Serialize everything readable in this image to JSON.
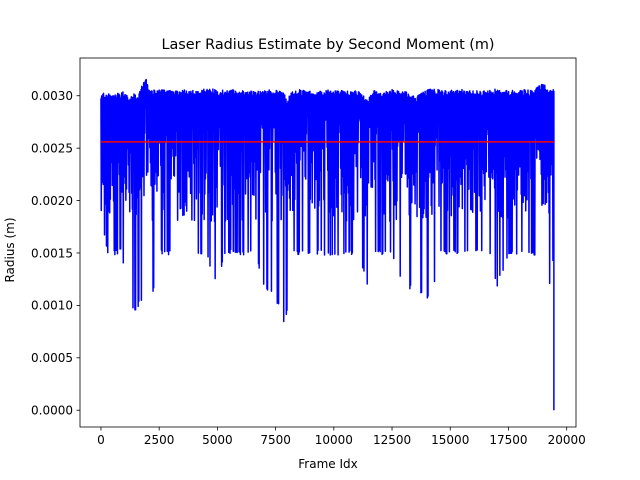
{
  "chart_data": {
    "type": "line",
    "title": "Laser Radius Estimate by Second Moment (m)",
    "xlabel": "Frame Idx",
    "ylabel": "Radius (m)",
    "xlim": [
      -900,
      20400
    ],
    "ylim": [
      -0.00016,
      0.00336
    ],
    "xticks": [
      0,
      2500,
      5000,
      7500,
      10000,
      12500,
      15000,
      17500,
      20000
    ],
    "xtick_labels": [
      "0",
      "2500",
      "5000",
      "7500",
      "10000",
      "12500",
      "15000",
      "17500",
      "20000"
    ],
    "yticks": [
      0.0,
      0.0005,
      0.001,
      0.0015,
      0.002,
      0.0025,
      0.003
    ],
    "ytick_labels": [
      "0.0000",
      "0.0005",
      "0.0010",
      "0.0015",
      "0.0020",
      "0.0025",
      "0.0030"
    ],
    "grid": false,
    "series": [
      {
        "color": "#0000ff",
        "style": "line",
        "envelope": {
          "x": [
            0,
            300,
            700,
            900,
            1100,
            1200,
            1400,
            1600,
            1900,
            2100,
            2500,
            3000,
            3500,
            4000,
            4500,
            5000,
            5300,
            5700,
            6200,
            6600,
            7000,
            7300,
            7600,
            7800,
            8000,
            8200,
            8600,
            9000,
            9500,
            10000,
            10500,
            11000,
            11500,
            11700,
            12000,
            12500,
            13000,
            13500,
            14000,
            14200,
            14500,
            15000,
            15500,
            15800,
            16300,
            16700,
            17000,
            17500,
            18000,
            18500,
            19000,
            19300,
            19450
          ],
          "upper": [
            0.00303,
            0.00302,
            0.00302,
            0.00304,
            0.00303,
            0.00296,
            0.00302,
            0.003,
            0.00319,
            0.00305,
            0.00306,
            0.00305,
            0.00306,
            0.00305,
            0.00307,
            0.00306,
            0.00305,
            0.00306,
            0.00305,
            0.00304,
            0.00305,
            0.00306,
            0.00305,
            0.00306,
            0.00296,
            0.00305,
            0.00306,
            0.00304,
            0.00305,
            0.00306,
            0.00305,
            0.00306,
            0.00298,
            0.00305,
            0.00304,
            0.00306,
            0.00305,
            0.00299,
            0.00306,
            0.00307,
            0.00306,
            0.00305,
            0.00306,
            0.00306,
            0.00305,
            0.00307,
            0.00306,
            0.00305,
            0.00306,
            0.00305,
            0.00312,
            0.00305,
            0.00306
          ],
          "lower": [
            0.00182,
            0.00148,
            0.00148,
            0.0015,
            0.00102,
            0.00093,
            0.00094,
            0.00098,
            0.00113,
            0.00094,
            0.00148,
            0.00148,
            0.0015,
            0.00148,
            0.00148,
            0.00117,
            0.00148,
            0.00149,
            0.00148,
            0.0015,
            0.00115,
            0.00112,
            0.001,
            0.00079,
            0.00092,
            0.00148,
            0.00148,
            0.00148,
            0.00148,
            0.00148,
            0.00147,
            0.00148,
            0.00115,
            0.00149,
            0.00148,
            0.00148,
            0.00115,
            0.00115,
            0.00107,
            0.00101,
            0.00149,
            0.00148,
            0.00149,
            0.00148,
            0.00148,
            0.00148,
            0.00116,
            0.00148,
            0.00149,
            0.00148,
            0.00148,
            0.00115,
            0.00148
          ]
        },
        "final_drop": {
          "x": 19450,
          "y": 0.0
        }
      },
      {
        "color": "#ff0000",
        "style": "hline",
        "y": 0.00256,
        "x_range": [
          0,
          19450
        ]
      }
    ]
  }
}
